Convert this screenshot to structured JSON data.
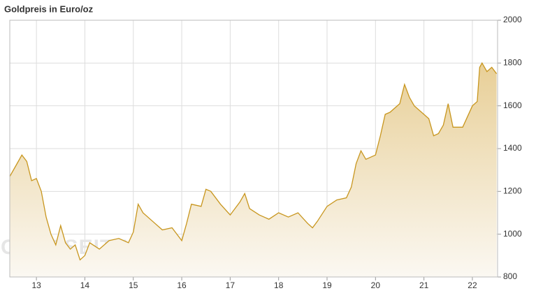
{
  "chart_data": {
    "type": "area",
    "title": "Goldpreis in Euro/oz",
    "watermark": "GOLDSEITEN.DE",
    "watermark_sub": "DIE GOLDSEITEN",
    "x": [
      12.45,
      12.6,
      12.7,
      12.8,
      12.9,
      13.0,
      13.1,
      13.2,
      13.3,
      13.4,
      13.5,
      13.6,
      13.7,
      13.8,
      13.9,
      14.0,
      14.1,
      14.3,
      14.5,
      14.7,
      14.9,
      15.0,
      15.1,
      15.2,
      15.4,
      15.6,
      15.8,
      16.0,
      16.1,
      16.2,
      16.4,
      16.5,
      16.6,
      16.8,
      17.0,
      17.2,
      17.3,
      17.4,
      17.6,
      17.8,
      18.0,
      18.2,
      18.4,
      18.6,
      18.7,
      18.8,
      19.0,
      19.2,
      19.4,
      19.5,
      19.6,
      19.7,
      19.8,
      20.0,
      20.1,
      20.2,
      20.3,
      20.5,
      20.6,
      20.7,
      20.8,
      21.0,
      21.1,
      21.2,
      21.3,
      21.4,
      21.5,
      21.6,
      21.8,
      22.0,
      22.1,
      22.15,
      22.2,
      22.3,
      22.4,
      22.5
    ],
    "values": [
      1270,
      1330,
      1370,
      1340,
      1250,
      1260,
      1200,
      1080,
      1000,
      950,
      1040,
      960,
      930,
      950,
      880,
      900,
      960,
      930,
      970,
      980,
      960,
      1010,
      1140,
      1100,
      1060,
      1020,
      1030,
      970,
      1050,
      1140,
      1130,
      1210,
      1200,
      1140,
      1090,
      1150,
      1190,
      1120,
      1090,
      1070,
      1100,
      1080,
      1100,
      1050,
      1030,
      1060,
      1130,
      1160,
      1170,
      1220,
      1330,
      1390,
      1350,
      1370,
      1460,
      1560,
      1570,
      1610,
      1700,
      1640,
      1600,
      1560,
      1540,
      1460,
      1470,
      1510,
      1610,
      1500,
      1500,
      1600,
      1620,
      1780,
      1800,
      1760,
      1780,
      1750
    ],
    "color": "#c8961e",
    "xlim": [
      12.45,
      22.52
    ],
    "xticks": [
      13,
      14,
      15,
      16,
      17,
      18,
      19,
      20,
      21,
      22
    ],
    "ylim": [
      800,
      2000
    ],
    "yticks": [
      800,
      1000,
      1200,
      1400,
      1600,
      1800,
      2000
    ],
    "grid": true
  }
}
